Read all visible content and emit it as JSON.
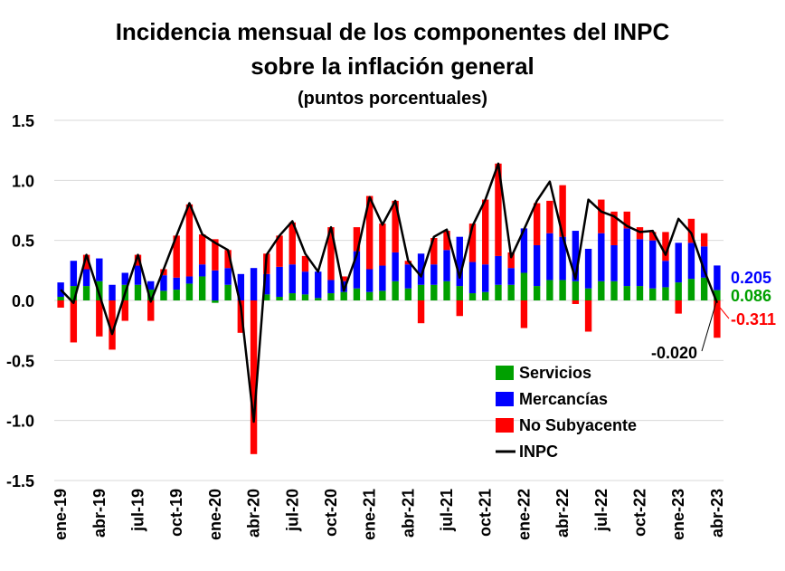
{
  "chart_data": {
    "type": "bar",
    "title_line1": "Incidencia mensual de los componentes del INPC",
    "title_line2": "sobre la inflación general",
    "subtitle": "(puntos porcentuales)",
    "ylim": [
      -1.5,
      1.5
    ],
    "yticks": [
      "1.5",
      "1.0",
      "0.5",
      "0.0",
      "-0.5",
      "-1.0",
      "-1.5"
    ],
    "ytick_values": [
      1.5,
      1.0,
      0.5,
      0.0,
      -0.5,
      -1.0,
      -1.5
    ],
    "categories": [
      "ene-19",
      "feb-19",
      "mar-19",
      "abr-19",
      "may-19",
      "jun-19",
      "jul-19",
      "ago-19",
      "sep-19",
      "oct-19",
      "nov-19",
      "dic-19",
      "ene-20",
      "feb-20",
      "mar-20",
      "abr-20",
      "may-20",
      "jun-20",
      "jul-20",
      "ago-20",
      "sep-20",
      "oct-20",
      "nov-20",
      "dic-20",
      "ene-21",
      "feb-21",
      "mar-21",
      "abr-21",
      "may-21",
      "jun-21",
      "jul-21",
      "ago-21",
      "sep-21",
      "oct-21",
      "nov-21",
      "dic-21",
      "ene-22",
      "feb-22",
      "mar-22",
      "abr-22",
      "may-22",
      "jun-22",
      "jul-22",
      "ago-22",
      "sep-22",
      "oct-22",
      "nov-22",
      "dic-22",
      "ene-23",
      "feb-23",
      "mar-23",
      "abr-23"
    ],
    "tick_labels": [
      "ene-19",
      "abr-19",
      "jul-19",
      "oct-19",
      "ene-20",
      "abr-20",
      "jul-20",
      "oct-20",
      "ene-21",
      "abr-21",
      "jul-21",
      "oct-21",
      "ene-22",
      "abr-22",
      "jul-22",
      "oct-22",
      "ene-23",
      "abr-23"
    ],
    "series": [
      {
        "name": "Servicios",
        "color": "#00a000",
        "values": [
          0.03,
          0.12,
          0.12,
          0.16,
          0.0,
          0.13,
          0.13,
          0.09,
          0.08,
          0.09,
          0.14,
          0.2,
          -0.02,
          0.13,
          0.0,
          0.0,
          0.05,
          0.03,
          0.06,
          0.05,
          0.02,
          0.06,
          0.07,
          0.1,
          0.07,
          0.08,
          0.16,
          0.1,
          0.13,
          0.13,
          0.16,
          0.12,
          0.06,
          0.07,
          0.13,
          0.13,
          0.23,
          0.12,
          0.17,
          0.17,
          0.16,
          0.1,
          0.16,
          0.16,
          0.12,
          0.12,
          0.1,
          0.11,
          0.15,
          0.18,
          0.19,
          0.086
        ]
      },
      {
        "name": "Mercancías",
        "color": "#0000ff",
        "values": [
          0.12,
          0.21,
          0.14,
          0.19,
          0.13,
          0.1,
          0.16,
          0.07,
          0.13,
          0.1,
          0.06,
          0.1,
          0.25,
          0.14,
          0.22,
          0.27,
          0.17,
          0.25,
          0.24,
          0.19,
          0.22,
          0.11,
          0.09,
          0.31,
          0.19,
          0.21,
          0.24,
          0.2,
          0.26,
          0.17,
          0.26,
          0.41,
          0.26,
          0.23,
          0.24,
          0.14,
          0.37,
          0.34,
          0.39,
          0.36,
          0.42,
          0.33,
          0.4,
          0.3,
          0.48,
          0.39,
          0.4,
          0.22,
          0.33,
          0.3,
          0.26,
          0.205
        ]
      },
      {
        "name": "No Subyacente",
        "color": "#ff0000",
        "values": [
          -0.06,
          -0.35,
          0.12,
          -0.3,
          -0.41,
          -0.17,
          0.09,
          -0.17,
          0.05,
          0.35,
          0.6,
          0.25,
          0.26,
          0.15,
          -0.27,
          -1.28,
          0.17,
          0.26,
          0.35,
          0.13,
          0.0,
          0.44,
          0.04,
          0.2,
          0.61,
          0.35,
          0.43,
          0.03,
          -0.19,
          0.22,
          0.16,
          -0.13,
          0.32,
          0.54,
          0.77,
          0.13,
          -0.23,
          0.35,
          0.27,
          0.43,
          -0.03,
          -0.26,
          0.28,
          0.28,
          0.14,
          0.1,
          0.07,
          0.24,
          -0.11,
          0.2,
          0.11,
          -0.311
        ]
      },
      {
        "name": "INPC",
        "color": "#000000",
        "type": "line",
        "values": [
          0.09,
          -0.02,
          0.38,
          0.05,
          -0.28,
          0.06,
          0.38,
          -0.01,
          0.26,
          0.54,
          0.81,
          0.55,
          0.48,
          0.42,
          -0.05,
          -1.01,
          0.38,
          0.54,
          0.66,
          0.39,
          0.24,
          0.61,
          0.08,
          0.38,
          0.86,
          0.63,
          0.83,
          0.33,
          0.2,
          0.53,
          0.59,
          0.19,
          0.62,
          0.84,
          1.14,
          0.36,
          0.59,
          0.83,
          0.99,
          0.54,
          0.18,
          0.84,
          0.74,
          0.7,
          0.62,
          0.57,
          0.58,
          0.38,
          0.68,
          0.56,
          0.25,
          -0.02
        ]
      }
    ],
    "annotations": [
      {
        "text": "0.205",
        "color": "#0000ff"
      },
      {
        "text": "0.086",
        "color": "#00a000"
      },
      {
        "text": "-0.311",
        "color": "#ff0000"
      },
      {
        "text": "-0.020",
        "color": "#000000"
      }
    ],
    "legend": {
      "placement": "bottom-right",
      "items": [
        "Servicios",
        "Mercancías",
        "No Subyacente",
        "INPC"
      ]
    }
  }
}
